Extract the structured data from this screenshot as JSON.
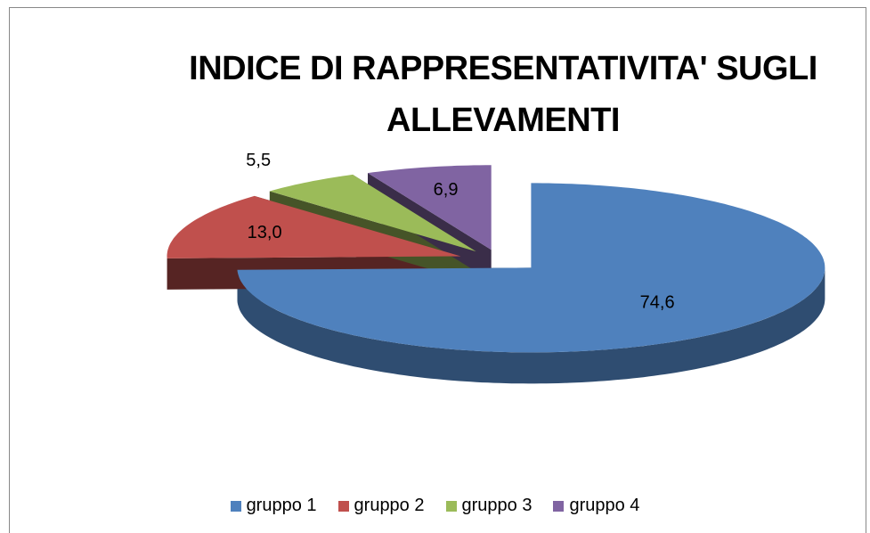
{
  "chart_data": {
    "type": "pie",
    "title": "INDICE DI RAPPRESENTATIVITA' SUGLI ALLEVAMENTI",
    "categories": [
      "gruppo 1",
      "gruppo 2",
      "gruppo 3",
      "gruppo 4"
    ],
    "values": [
      74.6,
      13.0,
      5.5,
      6.9
    ],
    "value_labels": [
      "74,6",
      "13,0",
      "5,5",
      "6,9"
    ],
    "colors": [
      "#4f81bd",
      "#c0504d",
      "#9bbb59",
      "#8064a2"
    ],
    "legend": "bottom"
  }
}
